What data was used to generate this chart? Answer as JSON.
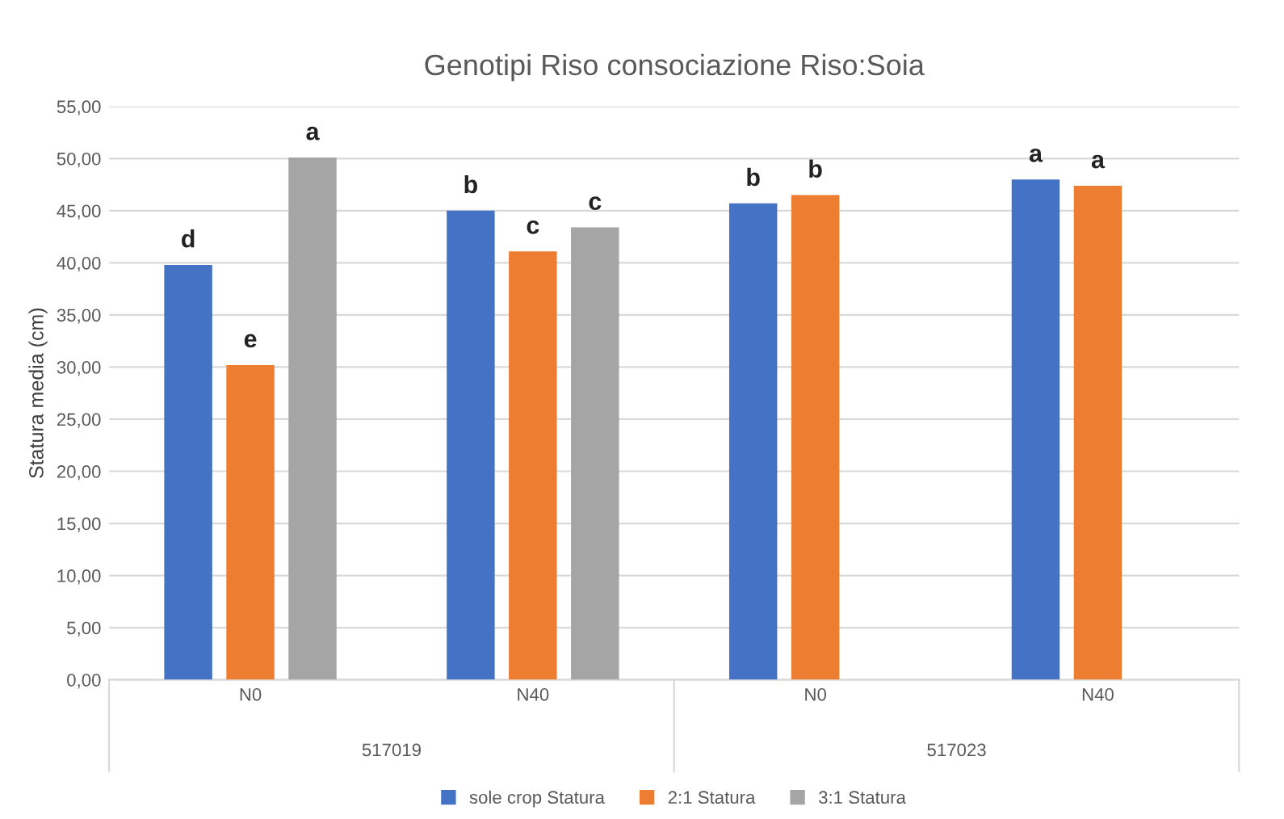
{
  "chart_data": {
    "type": "bar",
    "title": "Genotipi Riso consociazione Riso:Soia",
    "ylabel": "Statura media (cm)",
    "categories": [
      "N0",
      "N40",
      "N0",
      "N40"
    ],
    "series": [
      {
        "name": "sole crop Statura",
        "color": "#4472c4",
        "values": [
          39.8,
          45.0,
          45.7,
          48.0
        ],
        "value_labels": [
          "d",
          "b",
          "b",
          "a"
        ]
      },
      {
        "name": "2:1 Statura",
        "color": "#ed7d31",
        "values": [
          30.2,
          41.1,
          46.5,
          47.4
        ],
        "value_labels": [
          "e",
          "c",
          "b",
          "a"
        ]
      },
      {
        "name": "3:1 Statura",
        "color": "#a5a5a5",
        "values": [
          50.1,
          43.4,
          null,
          null
        ],
        "value_labels": [
          "a",
          "c",
          null,
          null
        ]
      }
    ],
    "annotations": [
      "517019",
      "517023"
    ],
    "ylim": [
      0,
      55
    ],
    "yticks": [
      {
        "value": 0,
        "label": "0,00"
      },
      {
        "value": 5,
        "label": "5,00"
      },
      {
        "value": 10,
        "label": "10,00"
      },
      {
        "value": 15,
        "label": "15,00"
      },
      {
        "value": 20,
        "label": "20,00"
      },
      {
        "value": 25,
        "label": "25,00"
      },
      {
        "value": 30,
        "label": "30,00"
      },
      {
        "value": 35,
        "label": "35,00"
      },
      {
        "value": 40,
        "label": "40,00"
      },
      {
        "value": 45,
        "label": "45,00"
      },
      {
        "value": 50,
        "label": "50,00"
      },
      {
        "value": 55,
        "label": "55,00"
      }
    ],
    "grid": "y",
    "legend": "bottom"
  }
}
